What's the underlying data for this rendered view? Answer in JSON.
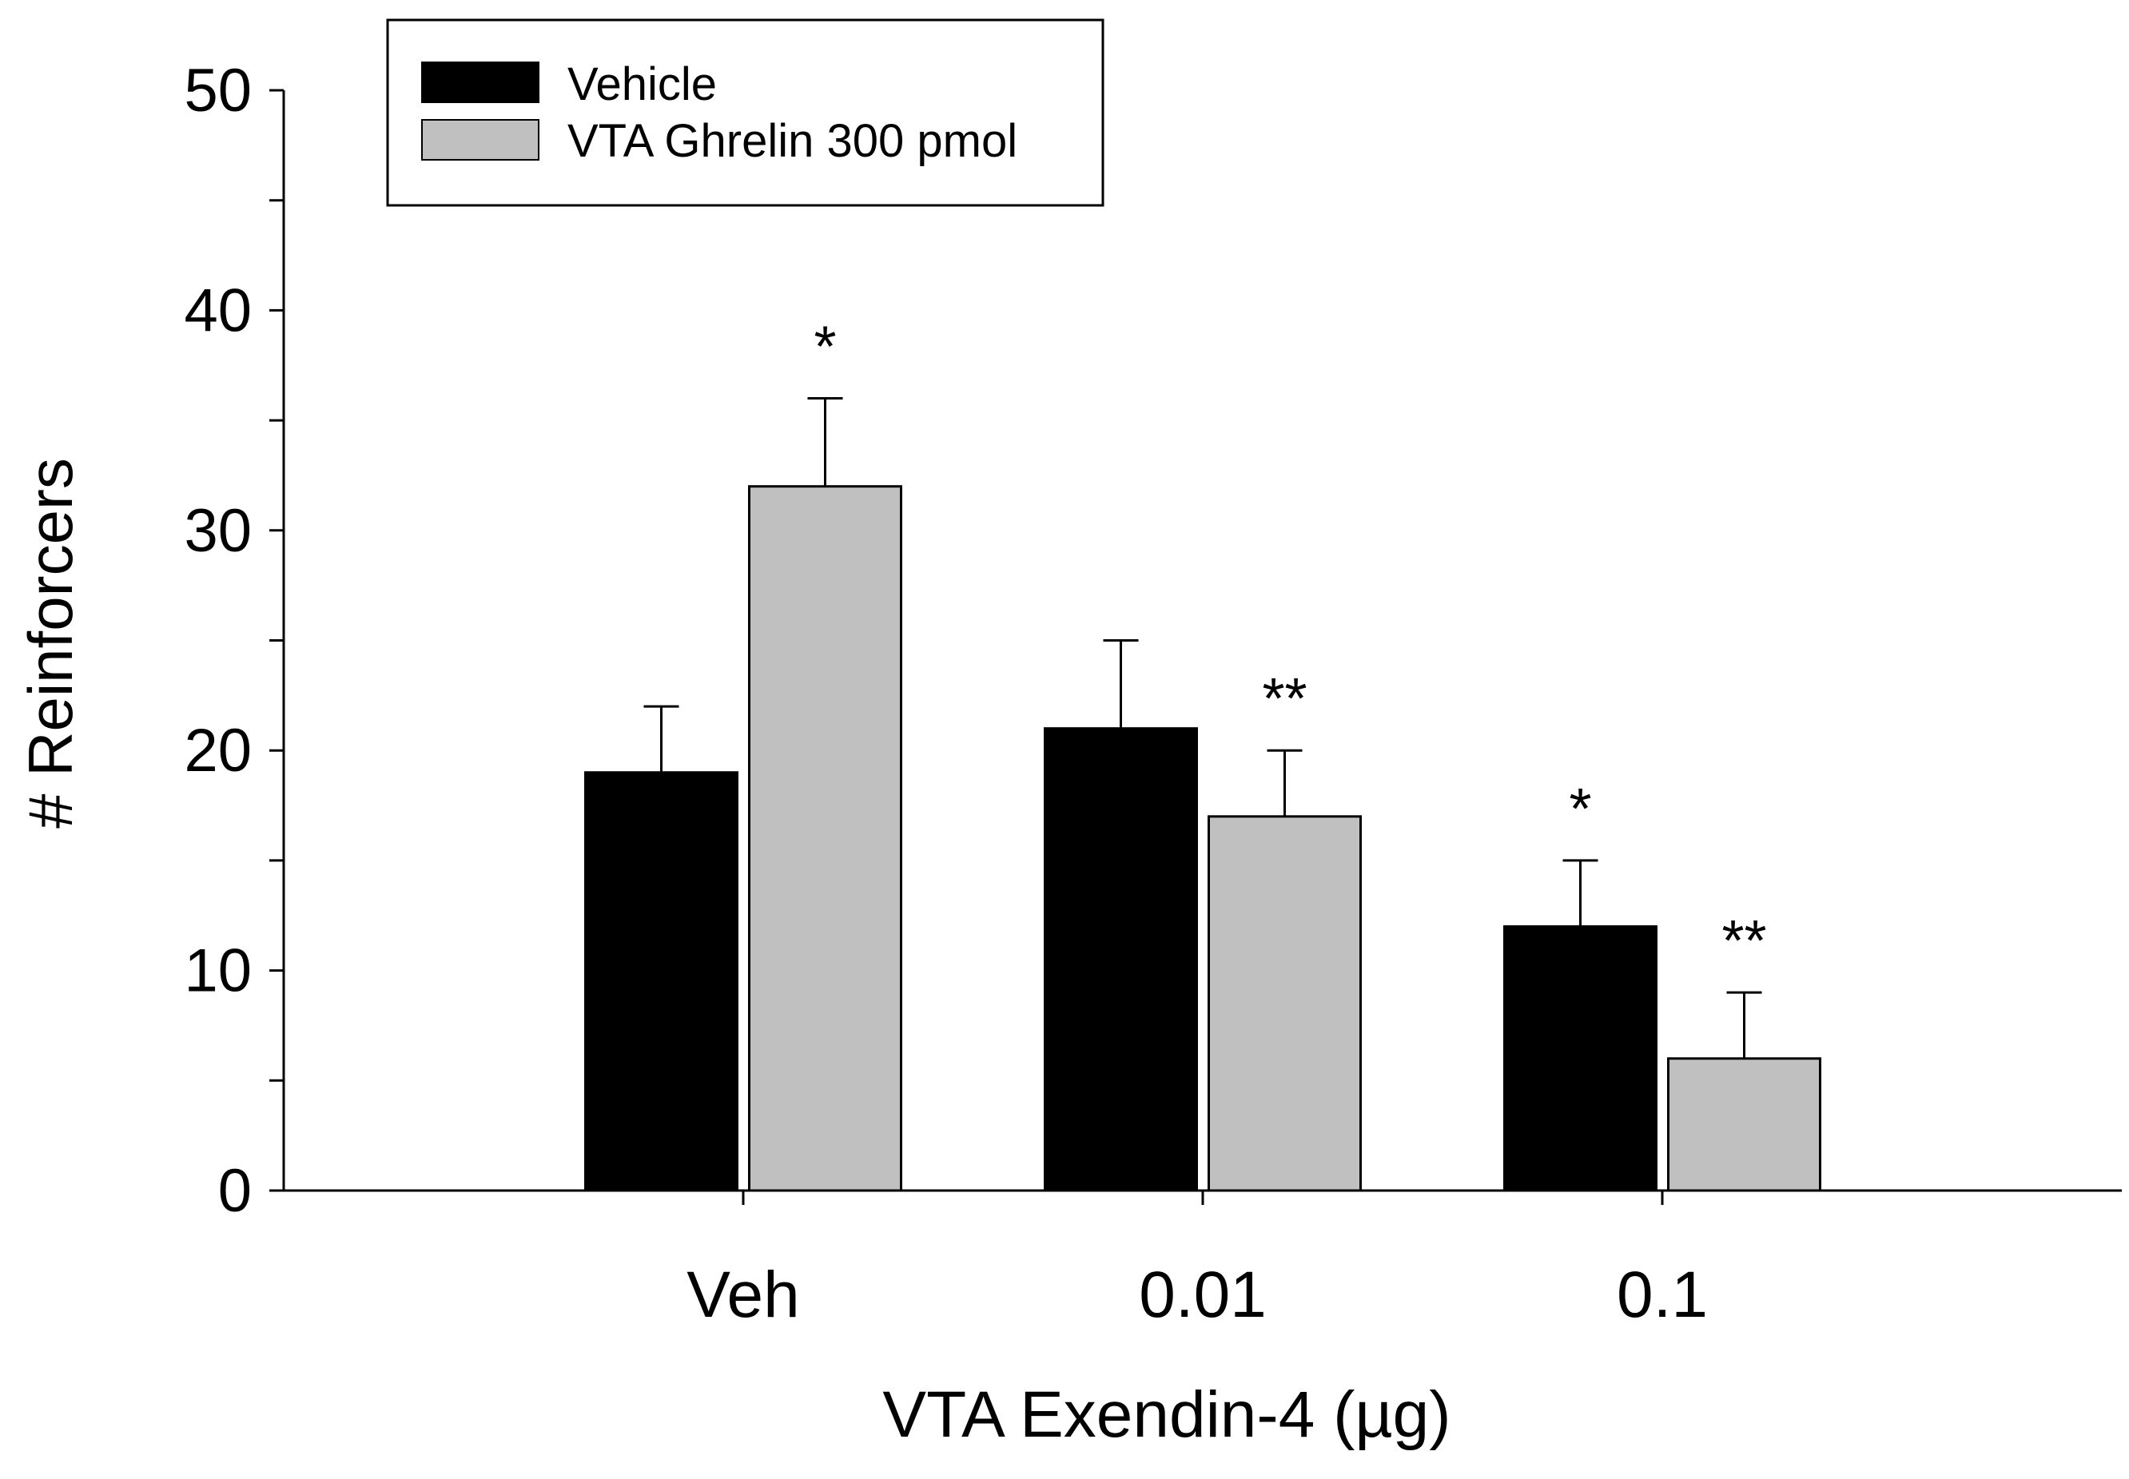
{
  "chart_data": {
    "type": "bar",
    "title": "",
    "xlabel": "VTA Exendin-4 (µg)",
    "ylabel": "# Reinforcers",
    "categories": [
      "Veh",
      "0.01",
      "0.1"
    ],
    "ylim": [
      0,
      50
    ],
    "yticks_major": [
      0,
      10,
      20,
      30,
      40,
      50
    ],
    "yticks_minor_step": 5,
    "grid": false,
    "legend_position": "top-left",
    "series": [
      {
        "name": "Vehicle",
        "color": "#000000",
        "values": [
          19,
          21,
          12
        ],
        "error": [
          3,
          4,
          3
        ],
        "annotations": [
          "",
          "",
          "*"
        ]
      },
      {
        "name": "VTA Ghrelin 300 pmol",
        "color": "#c0c0c0",
        "values": [
          32,
          17,
          6
        ],
        "error": [
          4,
          3,
          3
        ],
        "annotations": [
          "*",
          "**",
          "**"
        ]
      }
    ]
  }
}
